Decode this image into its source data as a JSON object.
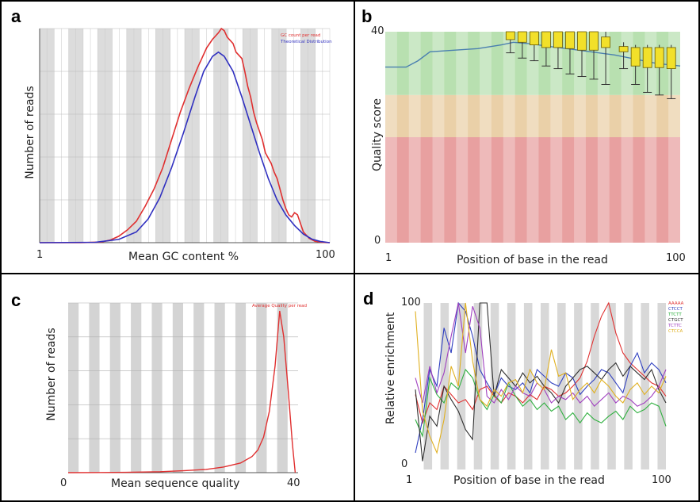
{
  "chart_data": [
    {
      "id": "a",
      "type": "line",
      "panel_label": "a",
      "xlabel": "Mean GC content %",
      "ylabel": "Number of reads",
      "x_ticks": [
        "1",
        "100"
      ],
      "xlim": [
        1,
        100
      ],
      "ylim": [
        0,
        100
      ],
      "legend_position": "top-right",
      "series": [
        {
          "name": "GC count per read",
          "color": "#e03030",
          "points": [
            [
              1,
              0
            ],
            [
              15,
              0
            ],
            [
              22,
              0.3
            ],
            [
              25,
              1.2
            ],
            [
              28,
              3
            ],
            [
              31,
              6
            ],
            [
              34,
              10
            ],
            [
              37,
              17
            ],
            [
              40,
              25
            ],
            [
              43,
              35
            ],
            [
              46,
              48
            ],
            [
              49,
              61
            ],
            [
              52,
              72
            ],
            [
              55,
              82
            ],
            [
              58,
              91
            ],
            [
              60,
              95
            ],
            [
              62,
              98
            ],
            [
              63,
              100
            ],
            [
              64,
              99
            ],
            [
              65,
              96
            ],
            [
              67,
              93
            ],
            [
              68,
              89
            ],
            [
              70,
              86
            ],
            [
              71,
              80
            ],
            [
              72,
              73
            ],
            [
              73,
              68
            ],
            [
              74,
              61
            ],
            [
              75,
              56
            ],
            [
              77,
              48
            ],
            [
              78,
              42
            ],
            [
              80,
              37
            ],
            [
              81,
              33
            ],
            [
              82,
              30
            ],
            [
              83,
              25
            ],
            [
              84,
              20
            ],
            [
              85,
              16
            ],
            [
              86,
              13
            ],
            [
              87,
              12
            ],
            [
              88,
              14
            ],
            [
              89,
              13
            ],
            [
              90,
              9
            ],
            [
              91,
              5
            ],
            [
              93,
              2
            ],
            [
              95,
              0.6
            ],
            [
              98,
              0.1
            ],
            [
              100,
              0
            ]
          ]
        },
        {
          "name": "Theoretical Distribution",
          "color": "#3030c0",
          "points": [
            [
              1,
              0
            ],
            [
              20,
              0.2
            ],
            [
              28,
              1.5
            ],
            [
              34,
              5
            ],
            [
              38,
              11
            ],
            [
              42,
              21
            ],
            [
              46,
              35
            ],
            [
              50,
              51
            ],
            [
              54,
              68
            ],
            [
              57,
              80
            ],
            [
              60,
              87
            ],
            [
              62,
              89
            ],
            [
              64,
              87
            ],
            [
              67,
              80
            ],
            [
              70,
              68
            ],
            [
              73,
              55
            ],
            [
              76,
              42
            ],
            [
              79,
              30
            ],
            [
              82,
              20
            ],
            [
              85,
              13
            ],
            [
              88,
              8
            ],
            [
              91,
              4
            ],
            [
              94,
              1.6
            ],
            [
              97,
              0.5
            ],
            [
              100,
              0
            ]
          ]
        }
      ]
    },
    {
      "id": "b",
      "type": "boxplot",
      "panel_label": "b",
      "xlabel": "Position of base in the read",
      "ylabel": "Quality score",
      "x_ticks": [
        "1",
        "100"
      ],
      "y_ticks": [
        "0",
        "40"
      ],
      "xlim": [
        1,
        100
      ],
      "ylim": [
        0,
        40
      ],
      "bands": [
        {
          "from": 0,
          "to": 20,
          "color": "#e8a0a0"
        },
        {
          "from": 20,
          "to": 28,
          "color": "#ead0a8"
        },
        {
          "from": 28,
          "to": 40,
          "color": "#b8e0b0"
        }
      ],
      "mean_line": [
        [
          1,
          33.3
        ],
        [
          8,
          33.3
        ],
        [
          12,
          34.5
        ],
        [
          16,
          36.2
        ],
        [
          24,
          36.5
        ],
        [
          32,
          36.8
        ],
        [
          40,
          37.5
        ],
        [
          44,
          38
        ],
        [
          50,
          37.7
        ],
        [
          56,
          37.2
        ],
        [
          62,
          36.8
        ],
        [
          70,
          36.2
        ],
        [
          78,
          35.6
        ],
        [
          85,
          34.8
        ],
        [
          92,
          34
        ],
        [
          100,
          33.5
        ]
      ],
      "boxes": [
        {
          "x": 43,
          "low": 36,
          "q1": 38.5,
          "q3": 40,
          "high": 40
        },
        {
          "x": 47,
          "low": 35,
          "q1": 38,
          "q3": 40,
          "high": 40
        },
        {
          "x": 51,
          "low": 34.5,
          "q1": 37.5,
          "q3": 40,
          "high": 40
        },
        {
          "x": 55,
          "low": 33.5,
          "q1": 37,
          "q3": 40,
          "high": 40
        },
        {
          "x": 59,
          "low": 33,
          "q1": 37,
          "q3": 40,
          "high": 40
        },
        {
          "x": 63,
          "low": 32,
          "q1": 36.8,
          "q3": 40,
          "high": 40
        },
        {
          "x": 67,
          "low": 31.5,
          "q1": 36.5,
          "q3": 40,
          "high": 40
        },
        {
          "x": 71,
          "low": 31,
          "q1": 36.5,
          "q3": 40,
          "high": 40
        },
        {
          "x": 75,
          "low": 30,
          "q1": 37,
          "q3": 39,
          "high": 40
        },
        {
          "x": 81,
          "low": 33,
          "q1": 36.2,
          "q3": 37.2,
          "high": 38
        },
        {
          "x": 85,
          "low": 30,
          "q1": 33.5,
          "q3": 37,
          "high": 37.5
        },
        {
          "x": 89,
          "low": 28.5,
          "q1": 33.2,
          "q3": 37,
          "high": 37.5
        },
        {
          "x": 93,
          "low": 28,
          "q1": 33.2,
          "q3": 37,
          "high": 37.5
        },
        {
          "x": 97,
          "low": 27.3,
          "q1": 33,
          "q3": 37,
          "high": 37.5
        }
      ]
    },
    {
      "id": "c",
      "type": "line",
      "panel_label": "c",
      "xlabel": "Mean sequence quality",
      "ylabel": "Number of reads",
      "x_ticks": [
        "0",
        "40"
      ],
      "xlim": [
        0,
        40
      ],
      "ylim": [
        0,
        100
      ],
      "legend_position": "top-right",
      "series": [
        {
          "name": "Average Quality per read",
          "color": "#e03030",
          "points": [
            [
              0,
              0
            ],
            [
              10,
              0.2
            ],
            [
              16,
              0.6
            ],
            [
              20,
              1.2
            ],
            [
              24,
              2
            ],
            [
              27,
              3.5
            ],
            [
              30,
              6
            ],
            [
              32,
              10
            ],
            [
              33,
              14
            ],
            [
              34,
              22
            ],
            [
              35,
              38
            ],
            [
              36,
              66
            ],
            [
              36.8,
              100
            ],
            [
              37.5,
              84
            ],
            [
              38.3,
              50
            ],
            [
              39,
              18
            ],
            [
              39.5,
              0
            ]
          ]
        }
      ]
    },
    {
      "id": "d",
      "type": "line",
      "panel_label": "d",
      "xlabel": "Position of base in the read",
      "ylabel": "Relative enrichment",
      "x_ticks": [
        "1",
        "100"
      ],
      "y_ticks": [
        "0",
        "100"
      ],
      "xlim": [
        1,
        100
      ],
      "ylim": [
        0,
        100
      ],
      "legend_position": "top-right",
      "series": [
        {
          "name": "AAAAA",
          "color": "#e03030",
          "values": [
            45,
            28,
            40,
            36,
            50,
            45,
            40,
            42,
            36,
            48,
            50,
            44,
            40,
            46,
            44,
            40,
            45,
            42,
            50,
            48,
            44,
            46,
            50,
            55,
            65,
            80,
            92,
            100,
            82,
            70,
            64,
            60,
            56,
            52,
            50,
            44
          ]
        },
        {
          "name": "CTCCT",
          "color": "#3040c0",
          "values": [
            10,
            30,
            60,
            50,
            85,
            70,
            100,
            95,
            80,
            60,
            52,
            45,
            55,
            50,
            48,
            52,
            46,
            60,
            56,
            52,
            50,
            58,
            55,
            45,
            50,
            54,
            60,
            58,
            52,
            46,
            62,
            70,
            58,
            64,
            60,
            52
          ]
        },
        {
          "name": "TTCTT",
          "color": "#30b040",
          "values": [
            30,
            20,
            55,
            45,
            40,
            52,
            48,
            60,
            55,
            42,
            36,
            45,
            40,
            52,
            44,
            38,
            42,
            36,
            40,
            35,
            38,
            30,
            34,
            28,
            34,
            30,
            28,
            32,
            35,
            30,
            38,
            34,
            36,
            40,
            38,
            26
          ]
        },
        {
          "name": "CTGCT",
          "color": "#303030",
          "values": [
            48,
            5,
            32,
            26,
            50,
            42,
            35,
            24,
            18,
            100,
            100,
            44,
            60,
            55,
            50,
            58,
            52,
            56,
            50,
            46,
            40,
            50,
            55,
            60,
            62,
            58,
            54,
            60,
            64,
            56,
            62,
            58,
            54,
            60,
            48,
            40
          ]
        },
        {
          "name": "TCTTC",
          "color": "#a040c0",
          "values": [
            55,
            40,
            62,
            46,
            58,
            80,
            100,
            70,
            98,
            85,
            44,
            40,
            48,
            42,
            50,
            46,
            44,
            52,
            48,
            40,
            44,
            42,
            46,
            40,
            44,
            38,
            42,
            46,
            40,
            44,
            42,
            38,
            40,
            44,
            50,
            60
          ]
        },
        {
          "name": "CTCCA",
          "color": "#e0b020",
          "values": [
            95,
            35,
            20,
            10,
            30,
            62,
            50,
            100,
            65,
            42,
            38,
            48,
            44,
            52,
            54,
            46,
            60,
            52,
            48,
            72,
            56,
            58,
            42,
            48,
            52,
            46,
            54,
            50,
            44,
            40,
            48,
            52,
            45,
            50,
            46,
            56
          ]
        }
      ]
    }
  ]
}
